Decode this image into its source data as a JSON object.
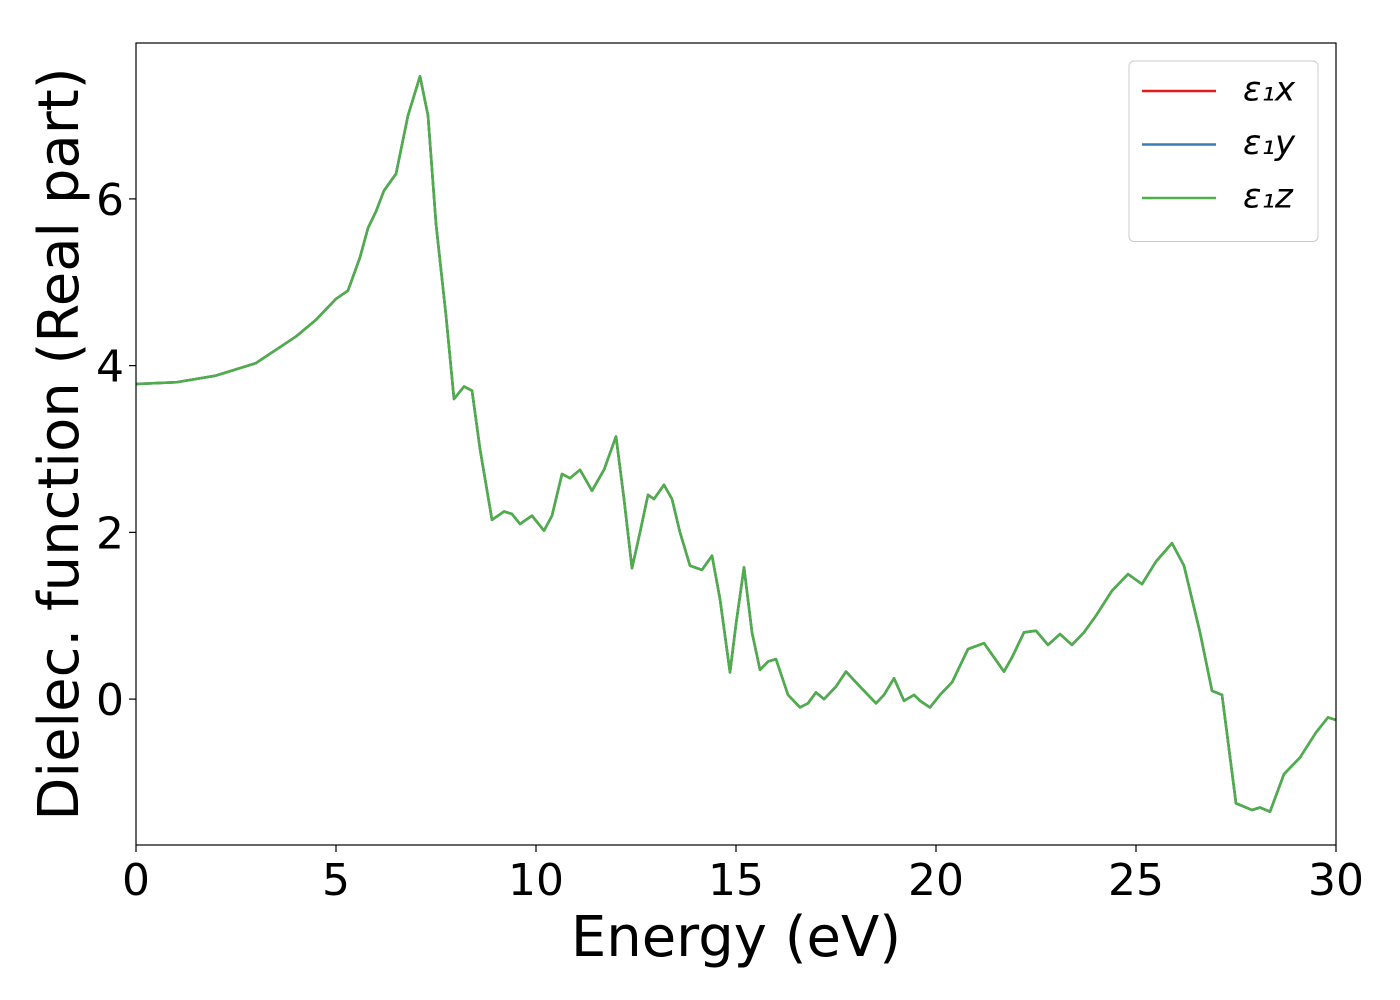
{
  "chart_data": {
    "type": "line",
    "xlabel": "Energy (eV)",
    "ylabel": "Dielec. function (Real part)",
    "x": [
      0,
      1,
      2,
      3,
      4,
      4.5,
      5,
      5.3,
      5.6,
      5.8,
      6.0,
      6.2,
      6.5,
      6.8,
      7.1,
      7.3,
      7.5,
      7.75,
      7.95,
      8.2,
      8.4,
      8.6,
      8.9,
      9.2,
      9.4,
      9.6,
      9.9,
      10.2,
      10.4,
      10.65,
      10.85,
      11.1,
      11.4,
      11.7,
      12.0,
      12.2,
      12.4,
      12.6,
      12.8,
      12.95,
      13.2,
      13.4,
      13.6,
      13.85,
      14.15,
      14.4,
      14.6,
      14.85,
      15.0,
      15.2,
      15.4,
      15.6,
      15.8,
      16.0,
      16.3,
      16.6,
      16.8,
      17.0,
      17.2,
      17.5,
      17.75,
      18.1,
      18.5,
      18.7,
      18.95,
      19.2,
      19.45,
      19.6,
      19.85,
      20.1,
      20.4,
      20.8,
      21.2,
      21.45,
      21.7,
      21.9,
      22.2,
      22.5,
      22.8,
      23.1,
      23.4,
      23.7,
      24.0,
      24.4,
      24.8,
      25.15,
      25.5,
      25.9,
      26.2,
      26.6,
      26.9,
      27.15,
      27.5,
      27.9,
      28.1,
      28.35,
      28.7,
      29.1,
      29.5,
      29.8,
      30.0
    ],
    "series": [
      {
        "name": "ε₁x",
        "color": "#e41a1c",
        "values": [
          3.78,
          3.8,
          3.88,
          4.03,
          4.35,
          4.55,
          4.8,
          4.9,
          5.3,
          5.65,
          5.85,
          6.1,
          6.3,
          7.0,
          7.47,
          7.0,
          5.7,
          4.6,
          3.6,
          3.75,
          3.7,
          3.0,
          2.15,
          2.25,
          2.22,
          2.1,
          2.2,
          2.02,
          2.2,
          2.7,
          2.65,
          2.75,
          2.5,
          2.75,
          3.15,
          2.4,
          1.57,
          2.0,
          2.45,
          2.4,
          2.57,
          2.4,
          2.0,
          1.6,
          1.55,
          1.72,
          1.2,
          0.32,
          0.9,
          1.58,
          0.8,
          0.35,
          0.45,
          0.48,
          0.05,
          -0.1,
          -0.05,
          0.08,
          0.0,
          0.15,
          0.33,
          0.15,
          -0.05,
          0.05,
          0.25,
          -0.02,
          0.05,
          -0.02,
          -0.1,
          0.05,
          0.2,
          0.6,
          0.67,
          0.5,
          0.33,
          0.5,
          0.8,
          0.82,
          0.65,
          0.78,
          0.65,
          0.8,
          1.0,
          1.3,
          1.5,
          1.38,
          1.65,
          1.87,
          1.6,
          0.8,
          0.1,
          0.05,
          -1.25,
          -1.33,
          -1.3,
          -1.35,
          -0.9,
          -0.7,
          -0.4,
          -0.22,
          -0.25
        ]
      },
      {
        "name": "ε₁y",
        "color": "#377eb8",
        "values": [
          3.78,
          3.8,
          3.88,
          4.03,
          4.35,
          4.55,
          4.8,
          4.9,
          5.3,
          5.65,
          5.85,
          6.1,
          6.3,
          7.0,
          7.47,
          7.0,
          5.7,
          4.6,
          3.6,
          3.75,
          3.7,
          3.0,
          2.15,
          2.25,
          2.22,
          2.1,
          2.2,
          2.02,
          2.2,
          2.7,
          2.65,
          2.75,
          2.5,
          2.75,
          3.15,
          2.4,
          1.57,
          2.0,
          2.45,
          2.4,
          2.57,
          2.4,
          2.0,
          1.6,
          1.55,
          1.72,
          1.2,
          0.32,
          0.9,
          1.58,
          0.8,
          0.35,
          0.45,
          0.48,
          0.05,
          -0.1,
          -0.05,
          0.08,
          0.0,
          0.15,
          0.33,
          0.15,
          -0.05,
          0.05,
          0.25,
          -0.02,
          0.05,
          -0.02,
          -0.1,
          0.05,
          0.2,
          0.6,
          0.67,
          0.5,
          0.33,
          0.5,
          0.8,
          0.82,
          0.65,
          0.78,
          0.65,
          0.8,
          1.0,
          1.3,
          1.5,
          1.38,
          1.65,
          1.87,
          1.6,
          0.8,
          0.1,
          0.05,
          -1.25,
          -1.33,
          -1.3,
          -1.35,
          -0.9,
          -0.7,
          -0.4,
          -0.22,
          -0.25
        ]
      },
      {
        "name": "ε₁z",
        "color": "#4daf4a",
        "values": [
          3.78,
          3.8,
          3.88,
          4.03,
          4.35,
          4.55,
          4.8,
          4.9,
          5.3,
          5.65,
          5.85,
          6.1,
          6.3,
          7.0,
          7.47,
          7.0,
          5.7,
          4.6,
          3.6,
          3.75,
          3.7,
          3.0,
          2.15,
          2.25,
          2.22,
          2.1,
          2.2,
          2.02,
          2.2,
          2.7,
          2.65,
          2.75,
          2.5,
          2.75,
          3.15,
          2.4,
          1.57,
          2.0,
          2.45,
          2.4,
          2.57,
          2.4,
          2.0,
          1.6,
          1.55,
          1.72,
          1.2,
          0.32,
          0.9,
          1.58,
          0.8,
          0.35,
          0.45,
          0.48,
          0.05,
          -0.1,
          -0.05,
          0.08,
          0.0,
          0.15,
          0.33,
          0.15,
          -0.05,
          0.05,
          0.25,
          -0.02,
          0.05,
          -0.02,
          -0.1,
          0.05,
          0.2,
          0.6,
          0.67,
          0.5,
          0.33,
          0.5,
          0.8,
          0.82,
          0.65,
          0.78,
          0.65,
          0.8,
          1.0,
          1.3,
          1.5,
          1.38,
          1.65,
          1.87,
          1.6,
          0.8,
          0.1,
          0.05,
          -1.25,
          -1.33,
          -1.3,
          -1.35,
          -0.9,
          -0.7,
          -0.4,
          -0.22,
          -0.25
        ]
      }
    ],
    "xlim": [
      0,
      30
    ],
    "xticks": [
      0,
      5,
      10,
      15,
      20,
      25,
      30
    ],
    "ylim": [
      -1.75,
      7.87
    ],
    "yticks": [
      0,
      2,
      4,
      6
    ],
    "grid": false,
    "legend": "upper right"
  }
}
